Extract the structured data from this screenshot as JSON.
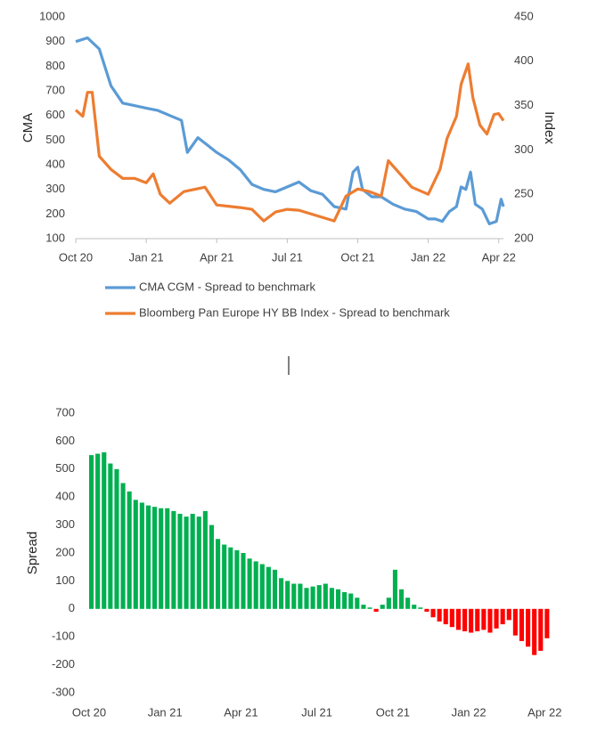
{
  "chart_data": [
    {
      "type": "line",
      "ylabel": "CMA",
      "y2label": "Index",
      "xlim": [
        0,
        18.2
      ],
      "xticks": [
        {
          "value": 0,
          "label": "Oct 20"
        },
        {
          "value": 3,
          "label": "Jan 21"
        },
        {
          "value": 6,
          "label": "Apr 21"
        },
        {
          "value": 9,
          "label": "Jul 21"
        },
        {
          "value": 12,
          "label": "Oct 21"
        },
        {
          "value": 15,
          "label": "Jan 22"
        },
        {
          "value": 18,
          "label": "Apr 22"
        }
      ],
      "ylim": [
        100,
        1000
      ],
      "yticks": [
        100,
        200,
        300,
        400,
        500,
        600,
        700,
        800,
        900,
        1000
      ],
      "y2lim": [
        200,
        450
      ],
      "y2ticks": [
        200,
        250,
        300,
        350,
        400,
        450
      ],
      "legend": "bottom",
      "series": [
        {
          "name": "CMA CGM - Spread to benchmark",
          "color": "#5b9bd5",
          "x": [
            0,
            0.5,
            1,
            1.5,
            2,
            2.5,
            3,
            3.5,
            4,
            4.5,
            4.75,
            5.2,
            5.6,
            6,
            6.5,
            7,
            7.5,
            8,
            8.5,
            9,
            9.5,
            10,
            10.5,
            11,
            11.5,
            11.8,
            12,
            12.2,
            12.6,
            13,
            13.5,
            14,
            14.5,
            15,
            15.3,
            15.6,
            15.9,
            16.2,
            16.4,
            16.6,
            16.8,
            17,
            17.3,
            17.6,
            17.9,
            18.1,
            18.2
          ],
          "values": [
            900,
            915,
            870,
            720,
            650,
            640,
            630,
            620,
            600,
            580,
            450,
            510,
            480,
            450,
            420,
            380,
            320,
            300,
            290,
            310,
            330,
            295,
            280,
            230,
            220,
            370,
            390,
            300,
            270,
            270,
            240,
            220,
            210,
            180,
            180,
            170,
            210,
            230,
            310,
            300,
            370,
            240,
            220,
            160,
            170,
            260,
            230
          ]
        },
        {
          "name": "Bloomberg Pan Europe HY BB Index - Spread to benchmark",
          "color": "#ed7d31",
          "axis": "y2",
          "x": [
            0,
            0.3,
            0.5,
            0.7,
            1,
            1.5,
            2,
            2.5,
            3,
            3.3,
            3.6,
            4,
            4.6,
            5.5,
            6,
            7,
            7.5,
            8,
            8.5,
            9,
            9.5,
            10,
            11,
            11.5,
            12,
            12.5,
            13,
            13.3,
            13.8,
            14.3,
            15,
            15.5,
            15.8,
            16.2,
            16.4,
            16.7,
            16.9,
            17.2,
            17.5,
            17.8,
            18,
            18.2
          ],
          "values": [
            345,
            338,
            365,
            365,
            293,
            278,
            268,
            268,
            263,
            273,
            250,
            240,
            253,
            258,
            238,
            235,
            233,
            220,
            230,
            233,
            232,
            228,
            220,
            248,
            256,
            253,
            248,
            288,
            273,
            258,
            250,
            278,
            313,
            338,
            374,
            397,
            359,
            328,
            318,
            340,
            341,
            333
          ]
        }
      ]
    },
    {
      "type": "bar",
      "ylabel": "Spread",
      "xlim": [
        0,
        18.2
      ],
      "xticks": [
        {
          "value": 0,
          "label": "Oct 20"
        },
        {
          "value": 3,
          "label": "Jan 21"
        },
        {
          "value": 6,
          "label": "Apr 21"
        },
        {
          "value": 9,
          "label": "Jul 21"
        },
        {
          "value": 12,
          "label": "Oct 21"
        },
        {
          "value": 15,
          "label": "Jan 22"
        },
        {
          "value": 18,
          "label": "Apr 22"
        }
      ],
      "ylim": [
        -300,
        700
      ],
      "yticks": [
        -300,
        -200,
        -100,
        0,
        100,
        200,
        300,
        400,
        500,
        600,
        700
      ],
      "color": "#00b050",
      "negative_color": "#ff0000",
      "x": [
        0,
        0.25,
        0.5,
        0.75,
        1,
        1.25,
        1.5,
        1.75,
        2,
        2.25,
        2.5,
        2.75,
        3,
        3.25,
        3.5,
        3.75,
        4,
        4.25,
        4.5,
        4.75,
        5,
        5.25,
        5.5,
        5.75,
        6,
        6.25,
        6.5,
        6.75,
        7,
        7.25,
        7.5,
        7.75,
        8,
        8.25,
        8.5,
        8.75,
        9,
        9.25,
        9.5,
        9.75,
        10,
        10.25,
        10.5,
        10.75,
        11,
        11.25,
        11.5,
        11.75,
        12,
        12.25,
        12.5,
        12.75,
        13,
        13.25,
        13.5,
        13.75,
        14,
        14.25,
        14.5,
        14.75,
        15,
        15.25,
        15.5,
        15.75,
        16,
        16.25,
        16.5,
        16.75,
        17,
        17.25,
        17.5,
        17.75,
        18
      ],
      "values": [
        550,
        555,
        560,
        520,
        500,
        450,
        420,
        390,
        380,
        370,
        365,
        360,
        360,
        350,
        340,
        330,
        340,
        330,
        350,
        300,
        250,
        230,
        220,
        210,
        200,
        180,
        170,
        160,
        150,
        140,
        110,
        100,
        90,
        90,
        75,
        80,
        85,
        90,
        75,
        70,
        60,
        55,
        40,
        15,
        5,
        -10,
        15,
        40,
        140,
        70,
        40,
        15,
        5,
        -10,
        -30,
        -45,
        -55,
        -65,
        -75,
        -80,
        -85,
        -80,
        -75,
        -85,
        -70,
        -55,
        -40,
        -95,
        -115,
        -135,
        -165,
        -150,
        -105
      ]
    }
  ]
}
